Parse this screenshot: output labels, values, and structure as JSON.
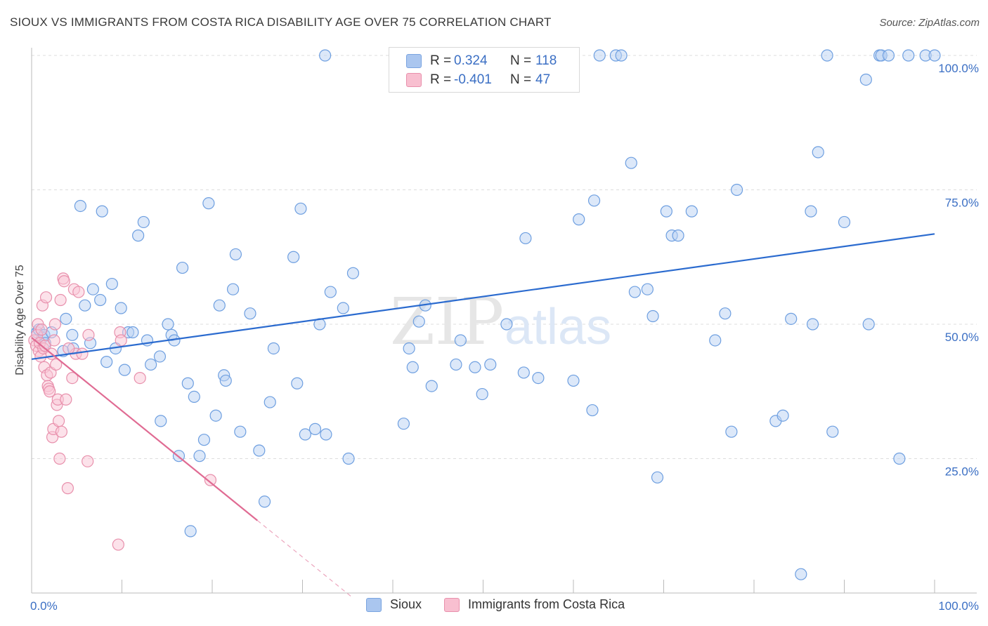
{
  "title": "SIOUX VS IMMIGRANTS FROM COSTA RICA DISABILITY AGE OVER 75 CORRELATION CHART",
  "source": "Source: ZipAtlas.com",
  "watermark": {
    "zip": "ZIP",
    "atlas": "atlas"
  },
  "legend": {
    "rows": [
      {
        "r_label": "R =",
        "r_value": "0.324",
        "n_label": "N =",
        "n_value": "118",
        "color": "#aac6ef",
        "border": "#7aa4e0"
      },
      {
        "r_label": "R =",
        "r_value": "-0.401",
        "n_label": "N =",
        "n_value": "47",
        "color": "#f8bfd0",
        "border": "#e890ac"
      }
    ]
  },
  "bottom_legend": [
    {
      "label": "Sioux",
      "color": "#aac6ef",
      "border": "#7aa4e0"
    },
    {
      "label": "Immigrants from Costa Rica",
      "color": "#f8bfd0",
      "border": "#e890ac"
    }
  ],
  "chart_data": {
    "type": "scatter",
    "ylabel": "Disability Age Over 75",
    "xlim": [
      0,
      100
    ],
    "ylim": [
      0,
      100
    ],
    "x_tick_labels": [
      "0.0%",
      "100.0%"
    ],
    "y_tick_labels": [
      {
        "value": 25,
        "label": "25.0%"
      },
      {
        "value": 50,
        "label": "50.0%"
      },
      {
        "value": 75,
        "label": "75.0%"
      },
      {
        "value": 100,
        "label": "100.0%"
      }
    ],
    "grid": true,
    "series": [
      {
        "name": "Sioux",
        "color": "#6e9fe0",
        "fill": "#b9d1f3",
        "trend": {
          "x": [
            0,
            100
          ],
          "y": [
            43.5,
            66.8
          ],
          "color": "#2b6bcf"
        },
        "points": [
          [
            0.6,
            48.5
          ],
          [
            0.8,
            49
          ],
          [
            1.2,
            47.5
          ],
          [
            1.4,
            48
          ],
          [
            1.5,
            46.5
          ],
          [
            2.2,
            48.5
          ],
          [
            3.5,
            45
          ],
          [
            3.8,
            51
          ],
          [
            4.5,
            48
          ],
          [
            4.6,
            45.5
          ],
          [
            5.4,
            72
          ],
          [
            5.9,
            53.5
          ],
          [
            6.5,
            46.5
          ],
          [
            6.8,
            56.5
          ],
          [
            7.6,
            54.5
          ],
          [
            7.8,
            71
          ],
          [
            8.3,
            43
          ],
          [
            8.9,
            57.5
          ],
          [
            9.3,
            45.5
          ],
          [
            9.9,
            53
          ],
          [
            10.3,
            41.5
          ],
          [
            10.7,
            48.5
          ],
          [
            11.2,
            48.5
          ],
          [
            11.8,
            66.5
          ],
          [
            12.4,
            69
          ],
          [
            12.8,
            47
          ],
          [
            13.2,
            42.5
          ],
          [
            14.2,
            44
          ],
          [
            14.3,
            32
          ],
          [
            15.1,
            50
          ],
          [
            15.5,
            48
          ],
          [
            15.8,
            47
          ],
          [
            16.3,
            25.5
          ],
          [
            16.7,
            60.5
          ],
          [
            17.3,
            39
          ],
          [
            17.6,
            11.5
          ],
          [
            18,
            36.5
          ],
          [
            18.6,
            25.5
          ],
          [
            19.1,
            28.5
          ],
          [
            19.6,
            72.5
          ],
          [
            20.4,
            33
          ],
          [
            20.8,
            53.5
          ],
          [
            21.3,
            40.5
          ],
          [
            21.5,
            39.5
          ],
          [
            22.3,
            56.5
          ],
          [
            22.6,
            63
          ],
          [
            23.1,
            30
          ],
          [
            24.2,
            52
          ],
          [
            25.2,
            26.5
          ],
          [
            25.8,
            17
          ],
          [
            26.4,
            35.5
          ],
          [
            26.8,
            45.5
          ],
          [
            29,
            62.5
          ],
          [
            29.4,
            39
          ],
          [
            29.8,
            71.5
          ],
          [
            30.3,
            29.5
          ],
          [
            31.4,
            30.5
          ],
          [
            31.9,
            50
          ],
          [
            32.5,
            100
          ],
          [
            32.6,
            29.5
          ],
          [
            33.1,
            56
          ],
          [
            34.5,
            53
          ],
          [
            35.1,
            25
          ],
          [
            35.6,
            59.5
          ],
          [
            41.2,
            31.5
          ],
          [
            41.8,
            45.5
          ],
          [
            42.2,
            42
          ],
          [
            42.9,
            50.5
          ],
          [
            43.6,
            53.5
          ],
          [
            44.3,
            38.5
          ],
          [
            47,
            42.5
          ],
          [
            47.5,
            47
          ],
          [
            49.1,
            42
          ],
          [
            49.9,
            37
          ],
          [
            50.8,
            42.5
          ],
          [
            52.6,
            50
          ],
          [
            54.5,
            41
          ],
          [
            54.7,
            66
          ],
          [
            56.1,
            40
          ],
          [
            60,
            39.5
          ],
          [
            60.6,
            69.5
          ],
          [
            62.1,
            34
          ],
          [
            62.3,
            73
          ],
          [
            62.9,
            100
          ],
          [
            64.7,
            100
          ],
          [
            65.3,
            100
          ],
          [
            66.4,
            80
          ],
          [
            66.8,
            56
          ],
          [
            68.2,
            56.5
          ],
          [
            68.8,
            51.5
          ],
          [
            69.3,
            21.5
          ],
          [
            70.3,
            71
          ],
          [
            70.9,
            66.5
          ],
          [
            71.6,
            66.5
          ],
          [
            73.1,
            71
          ],
          [
            75.7,
            47
          ],
          [
            76.8,
            52
          ],
          [
            77.5,
            30
          ],
          [
            78.1,
            75
          ],
          [
            82.4,
            32
          ],
          [
            83.2,
            33
          ],
          [
            84.1,
            51
          ],
          [
            85.2,
            3.5
          ],
          [
            86.3,
            71
          ],
          [
            86.5,
            50
          ],
          [
            87.1,
            82
          ],
          [
            88.1,
            100
          ],
          [
            88.7,
            30
          ],
          [
            90,
            69
          ],
          [
            92.4,
            95.5
          ],
          [
            92.7,
            50
          ],
          [
            93.9,
            100
          ],
          [
            94.1,
            100
          ],
          [
            94.9,
            100
          ],
          [
            96.1,
            25
          ],
          [
            97.1,
            100
          ],
          [
            99,
            100
          ],
          [
            100,
            100
          ]
        ]
      },
      {
        "name": "Immigrants from Costa Rica",
        "color": "#e890ac",
        "fill": "#f9c6d5",
        "trend": {
          "x": [
            0,
            25
          ],
          "y": [
            47.5,
            13.5
          ],
          "color": "#e06b93"
        },
        "trend_dashed": {
          "x": [
            25,
            35.5
          ],
          "y": [
            13.5,
            -0.8
          ]
        },
        "points": [
          [
            0.3,
            47
          ],
          [
            0.5,
            46
          ],
          [
            0.6,
            48
          ],
          [
            0.7,
            50
          ],
          [
            0.8,
            45
          ],
          [
            0.9,
            46.5
          ],
          [
            1,
            44
          ],
          [
            1.1,
            49
          ],
          [
            1.2,
            53.5
          ],
          [
            1.3,
            45.5
          ],
          [
            1.4,
            42
          ],
          [
            1.5,
            46
          ],
          [
            1.6,
            55
          ],
          [
            1.7,
            40.5
          ],
          [
            1.8,
            38.5
          ],
          [
            1.9,
            38
          ],
          [
            2,
            37.5
          ],
          [
            2.1,
            41
          ],
          [
            2.2,
            44.5
          ],
          [
            2.3,
            29
          ],
          [
            2.4,
            30.5
          ],
          [
            2.5,
            47
          ],
          [
            2.6,
            50
          ],
          [
            2.7,
            42.5
          ],
          [
            2.8,
            35
          ],
          [
            2.9,
            36
          ],
          [
            3,
            32
          ],
          [
            3.1,
            25
          ],
          [
            3.2,
            54.5
          ],
          [
            3.3,
            30
          ],
          [
            3.5,
            58.5
          ],
          [
            3.6,
            58
          ],
          [
            3.8,
            36
          ],
          [
            4,
            19.5
          ],
          [
            4.5,
            40
          ],
          [
            4.7,
            56.5
          ],
          [
            4.9,
            44.5
          ],
          [
            5.2,
            56
          ],
          [
            5.6,
            44.5
          ],
          [
            6.2,
            24.5
          ],
          [
            6.3,
            48
          ],
          [
            9.6,
            9
          ],
          [
            9.8,
            48.5
          ],
          [
            9.9,
            47
          ],
          [
            12,
            40
          ],
          [
            19.8,
            21
          ],
          [
            4.1,
            45.5
          ]
        ]
      }
    ]
  }
}
